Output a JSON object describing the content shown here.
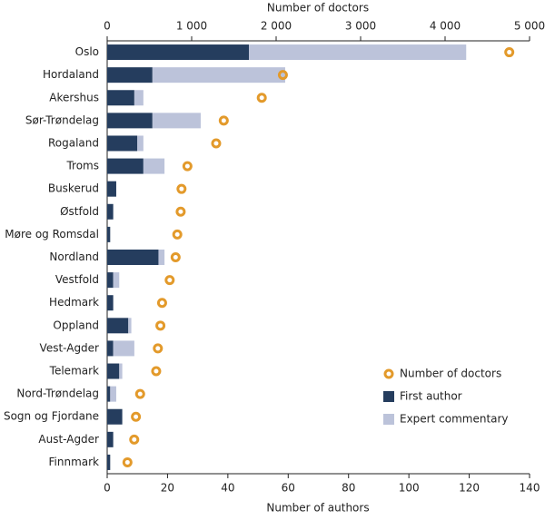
{
  "chart_data": {
    "type": "bar",
    "orientation": "horizontal",
    "stacked": true,
    "xlabel": "Number of authors",
    "x2label": "Number of doctors",
    "categories": [
      "Oslo",
      "Hordaland",
      "Akershus",
      "Sør-Trøndelag",
      "Rogaland",
      "Troms",
      "Buskerud",
      "Østfold",
      "Møre og Romsdal",
      "Nordland",
      "Vestfold",
      "Hedmark",
      "Oppland",
      "Vest-Agder",
      "Telemark",
      "Nord-Trøndelag",
      "Sogn og Fjordane",
      "Aust-Agder",
      "Finnmark"
    ],
    "series": [
      {
        "name": "Number of doctors",
        "type": "scatter",
        "axis": "x2",
        "color": "#e39a2b",
        "values": [
          4760,
          2080,
          1830,
          1380,
          1290,
          950,
          880,
          870,
          830,
          810,
          740,
          650,
          630,
          600,
          580,
          390,
          340,
          320,
          240
        ]
      },
      {
        "name": "First author",
        "type": "bar",
        "color": "#253d5e",
        "values": [
          47,
          15,
          9,
          15,
          10,
          12,
          3,
          2,
          1,
          17,
          2,
          2,
          7,
          2,
          4,
          1,
          5,
          2,
          1
        ]
      },
      {
        "name": "Expert commentary",
        "type": "bar",
        "color": "#bcc3da",
        "values": [
          72,
          44,
          3,
          16,
          2,
          7,
          0,
          0,
          0,
          2,
          2,
          0,
          1,
          7,
          1,
          2,
          0,
          0,
          0
        ]
      }
    ],
    "xlim": [
      0,
      140
    ],
    "xticks": [
      0,
      20,
      40,
      60,
      80,
      100,
      120,
      140
    ],
    "x2lim": [
      0,
      5000
    ],
    "x2ticks": [
      0,
      {
        "value": 1000,
        "label": "1 000"
      },
      {
        "value": 2000,
        "label": "2 000"
      },
      {
        "value": 3000,
        "label": "3 000"
      },
      {
        "value": 4000,
        "label": "4 000"
      },
      {
        "value": 5000,
        "label": "5 000"
      }
    ],
    "legend": "lower right"
  }
}
